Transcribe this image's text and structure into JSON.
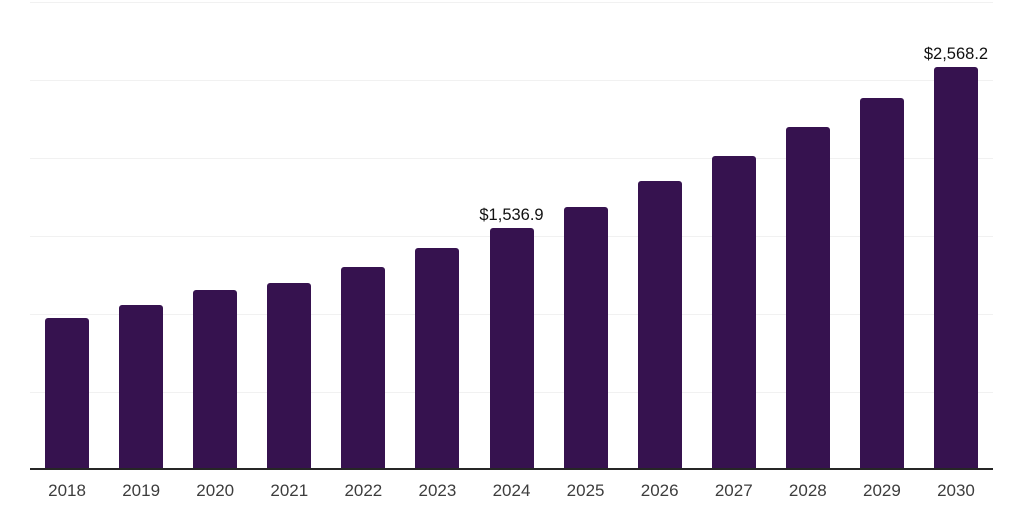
{
  "chart_data": {
    "type": "bar",
    "title": "",
    "xlabel": "",
    "ylabel": "",
    "categories": [
      "2018",
      "2019",
      "2020",
      "2021",
      "2022",
      "2023",
      "2024",
      "2025",
      "2026",
      "2027",
      "2028",
      "2029",
      "2030"
    ],
    "values": [
      962,
      1045,
      1139,
      1186,
      1289,
      1410,
      1536.9,
      1676,
      1837,
      2003,
      2186,
      2372,
      2568.2
    ],
    "point_labels": [
      "",
      "",
      "",
      "",
      "",
      "",
      "$1,536.9",
      "",
      "",
      "",
      "",
      "",
      "$2,568.2"
    ],
    "ylim": [
      0,
      3000
    ],
    "gridline_step": 500,
    "grid": "on",
    "legend": "none",
    "yaxis_tick_labels_visible": false,
    "colors": {
      "bar": "#36124f",
      "gridline": "#f1f1f1",
      "axis_line": "#262626",
      "tick_label": "#3d3d3d",
      "value_label": "#111111",
      "background": "#ffffff"
    }
  }
}
